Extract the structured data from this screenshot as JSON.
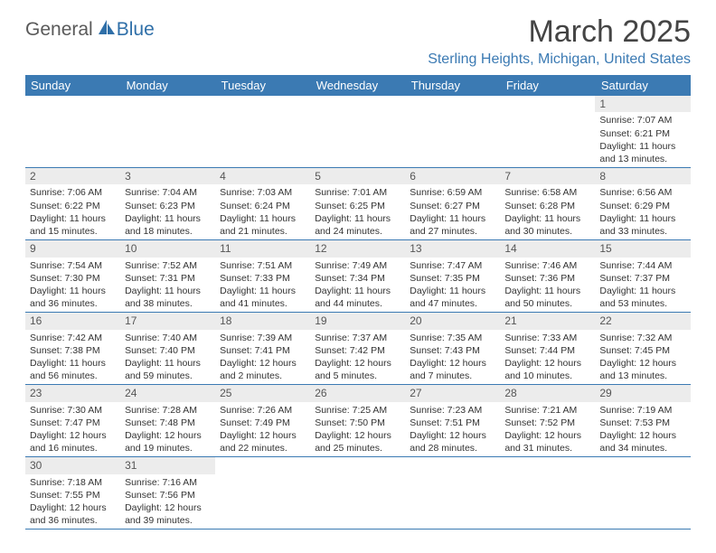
{
  "logo": {
    "textA": "General",
    "textB": "Blue"
  },
  "title": "March 2025",
  "location": "Sterling Heights, Michigan, United States",
  "columns": [
    "Sunday",
    "Monday",
    "Tuesday",
    "Wednesday",
    "Thursday",
    "Friday",
    "Saturday"
  ],
  "colors": {
    "header_bg": "#3b7ab3",
    "header_fg": "#ffffff",
    "daynum_bg": "#ececec",
    "border": "#3b7ab3",
    "location_fg": "#3b7ab3"
  },
  "weeks": [
    [
      null,
      null,
      null,
      null,
      null,
      null,
      {
        "n": "1",
        "sr": "Sunrise: 7:07 AM",
        "ss": "Sunset: 6:21 PM",
        "d1": "Daylight: 11 hours",
        "d2": "and 13 minutes."
      }
    ],
    [
      {
        "n": "2",
        "sr": "Sunrise: 7:06 AM",
        "ss": "Sunset: 6:22 PM",
        "d1": "Daylight: 11 hours",
        "d2": "and 15 minutes."
      },
      {
        "n": "3",
        "sr": "Sunrise: 7:04 AM",
        "ss": "Sunset: 6:23 PM",
        "d1": "Daylight: 11 hours",
        "d2": "and 18 minutes."
      },
      {
        "n": "4",
        "sr": "Sunrise: 7:03 AM",
        "ss": "Sunset: 6:24 PM",
        "d1": "Daylight: 11 hours",
        "d2": "and 21 minutes."
      },
      {
        "n": "5",
        "sr": "Sunrise: 7:01 AM",
        "ss": "Sunset: 6:25 PM",
        "d1": "Daylight: 11 hours",
        "d2": "and 24 minutes."
      },
      {
        "n": "6",
        "sr": "Sunrise: 6:59 AM",
        "ss": "Sunset: 6:27 PM",
        "d1": "Daylight: 11 hours",
        "d2": "and 27 minutes."
      },
      {
        "n": "7",
        "sr": "Sunrise: 6:58 AM",
        "ss": "Sunset: 6:28 PM",
        "d1": "Daylight: 11 hours",
        "d2": "and 30 minutes."
      },
      {
        "n": "8",
        "sr": "Sunrise: 6:56 AM",
        "ss": "Sunset: 6:29 PM",
        "d1": "Daylight: 11 hours",
        "d2": "and 33 minutes."
      }
    ],
    [
      {
        "n": "9",
        "sr": "Sunrise: 7:54 AM",
        "ss": "Sunset: 7:30 PM",
        "d1": "Daylight: 11 hours",
        "d2": "and 36 minutes."
      },
      {
        "n": "10",
        "sr": "Sunrise: 7:52 AM",
        "ss": "Sunset: 7:31 PM",
        "d1": "Daylight: 11 hours",
        "d2": "and 38 minutes."
      },
      {
        "n": "11",
        "sr": "Sunrise: 7:51 AM",
        "ss": "Sunset: 7:33 PM",
        "d1": "Daylight: 11 hours",
        "d2": "and 41 minutes."
      },
      {
        "n": "12",
        "sr": "Sunrise: 7:49 AM",
        "ss": "Sunset: 7:34 PM",
        "d1": "Daylight: 11 hours",
        "d2": "and 44 minutes."
      },
      {
        "n": "13",
        "sr": "Sunrise: 7:47 AM",
        "ss": "Sunset: 7:35 PM",
        "d1": "Daylight: 11 hours",
        "d2": "and 47 minutes."
      },
      {
        "n": "14",
        "sr": "Sunrise: 7:46 AM",
        "ss": "Sunset: 7:36 PM",
        "d1": "Daylight: 11 hours",
        "d2": "and 50 minutes."
      },
      {
        "n": "15",
        "sr": "Sunrise: 7:44 AM",
        "ss": "Sunset: 7:37 PM",
        "d1": "Daylight: 11 hours",
        "d2": "and 53 minutes."
      }
    ],
    [
      {
        "n": "16",
        "sr": "Sunrise: 7:42 AM",
        "ss": "Sunset: 7:38 PM",
        "d1": "Daylight: 11 hours",
        "d2": "and 56 minutes."
      },
      {
        "n": "17",
        "sr": "Sunrise: 7:40 AM",
        "ss": "Sunset: 7:40 PM",
        "d1": "Daylight: 11 hours",
        "d2": "and 59 minutes."
      },
      {
        "n": "18",
        "sr": "Sunrise: 7:39 AM",
        "ss": "Sunset: 7:41 PM",
        "d1": "Daylight: 12 hours",
        "d2": "and 2 minutes."
      },
      {
        "n": "19",
        "sr": "Sunrise: 7:37 AM",
        "ss": "Sunset: 7:42 PM",
        "d1": "Daylight: 12 hours",
        "d2": "and 5 minutes."
      },
      {
        "n": "20",
        "sr": "Sunrise: 7:35 AM",
        "ss": "Sunset: 7:43 PM",
        "d1": "Daylight: 12 hours",
        "d2": "and 7 minutes."
      },
      {
        "n": "21",
        "sr": "Sunrise: 7:33 AM",
        "ss": "Sunset: 7:44 PM",
        "d1": "Daylight: 12 hours",
        "d2": "and 10 minutes."
      },
      {
        "n": "22",
        "sr": "Sunrise: 7:32 AM",
        "ss": "Sunset: 7:45 PM",
        "d1": "Daylight: 12 hours",
        "d2": "and 13 minutes."
      }
    ],
    [
      {
        "n": "23",
        "sr": "Sunrise: 7:30 AM",
        "ss": "Sunset: 7:47 PM",
        "d1": "Daylight: 12 hours",
        "d2": "and 16 minutes."
      },
      {
        "n": "24",
        "sr": "Sunrise: 7:28 AM",
        "ss": "Sunset: 7:48 PM",
        "d1": "Daylight: 12 hours",
        "d2": "and 19 minutes."
      },
      {
        "n": "25",
        "sr": "Sunrise: 7:26 AM",
        "ss": "Sunset: 7:49 PM",
        "d1": "Daylight: 12 hours",
        "d2": "and 22 minutes."
      },
      {
        "n": "26",
        "sr": "Sunrise: 7:25 AM",
        "ss": "Sunset: 7:50 PM",
        "d1": "Daylight: 12 hours",
        "d2": "and 25 minutes."
      },
      {
        "n": "27",
        "sr": "Sunrise: 7:23 AM",
        "ss": "Sunset: 7:51 PM",
        "d1": "Daylight: 12 hours",
        "d2": "and 28 minutes."
      },
      {
        "n": "28",
        "sr": "Sunrise: 7:21 AM",
        "ss": "Sunset: 7:52 PM",
        "d1": "Daylight: 12 hours",
        "d2": "and 31 minutes."
      },
      {
        "n": "29",
        "sr": "Sunrise: 7:19 AM",
        "ss": "Sunset: 7:53 PM",
        "d1": "Daylight: 12 hours",
        "d2": "and 34 minutes."
      }
    ],
    [
      {
        "n": "30",
        "sr": "Sunrise: 7:18 AM",
        "ss": "Sunset: 7:55 PM",
        "d1": "Daylight: 12 hours",
        "d2": "and 36 minutes."
      },
      {
        "n": "31",
        "sr": "Sunrise: 7:16 AM",
        "ss": "Sunset: 7:56 PM",
        "d1": "Daylight: 12 hours",
        "d2": "and 39 minutes."
      },
      null,
      null,
      null,
      null,
      null
    ]
  ]
}
